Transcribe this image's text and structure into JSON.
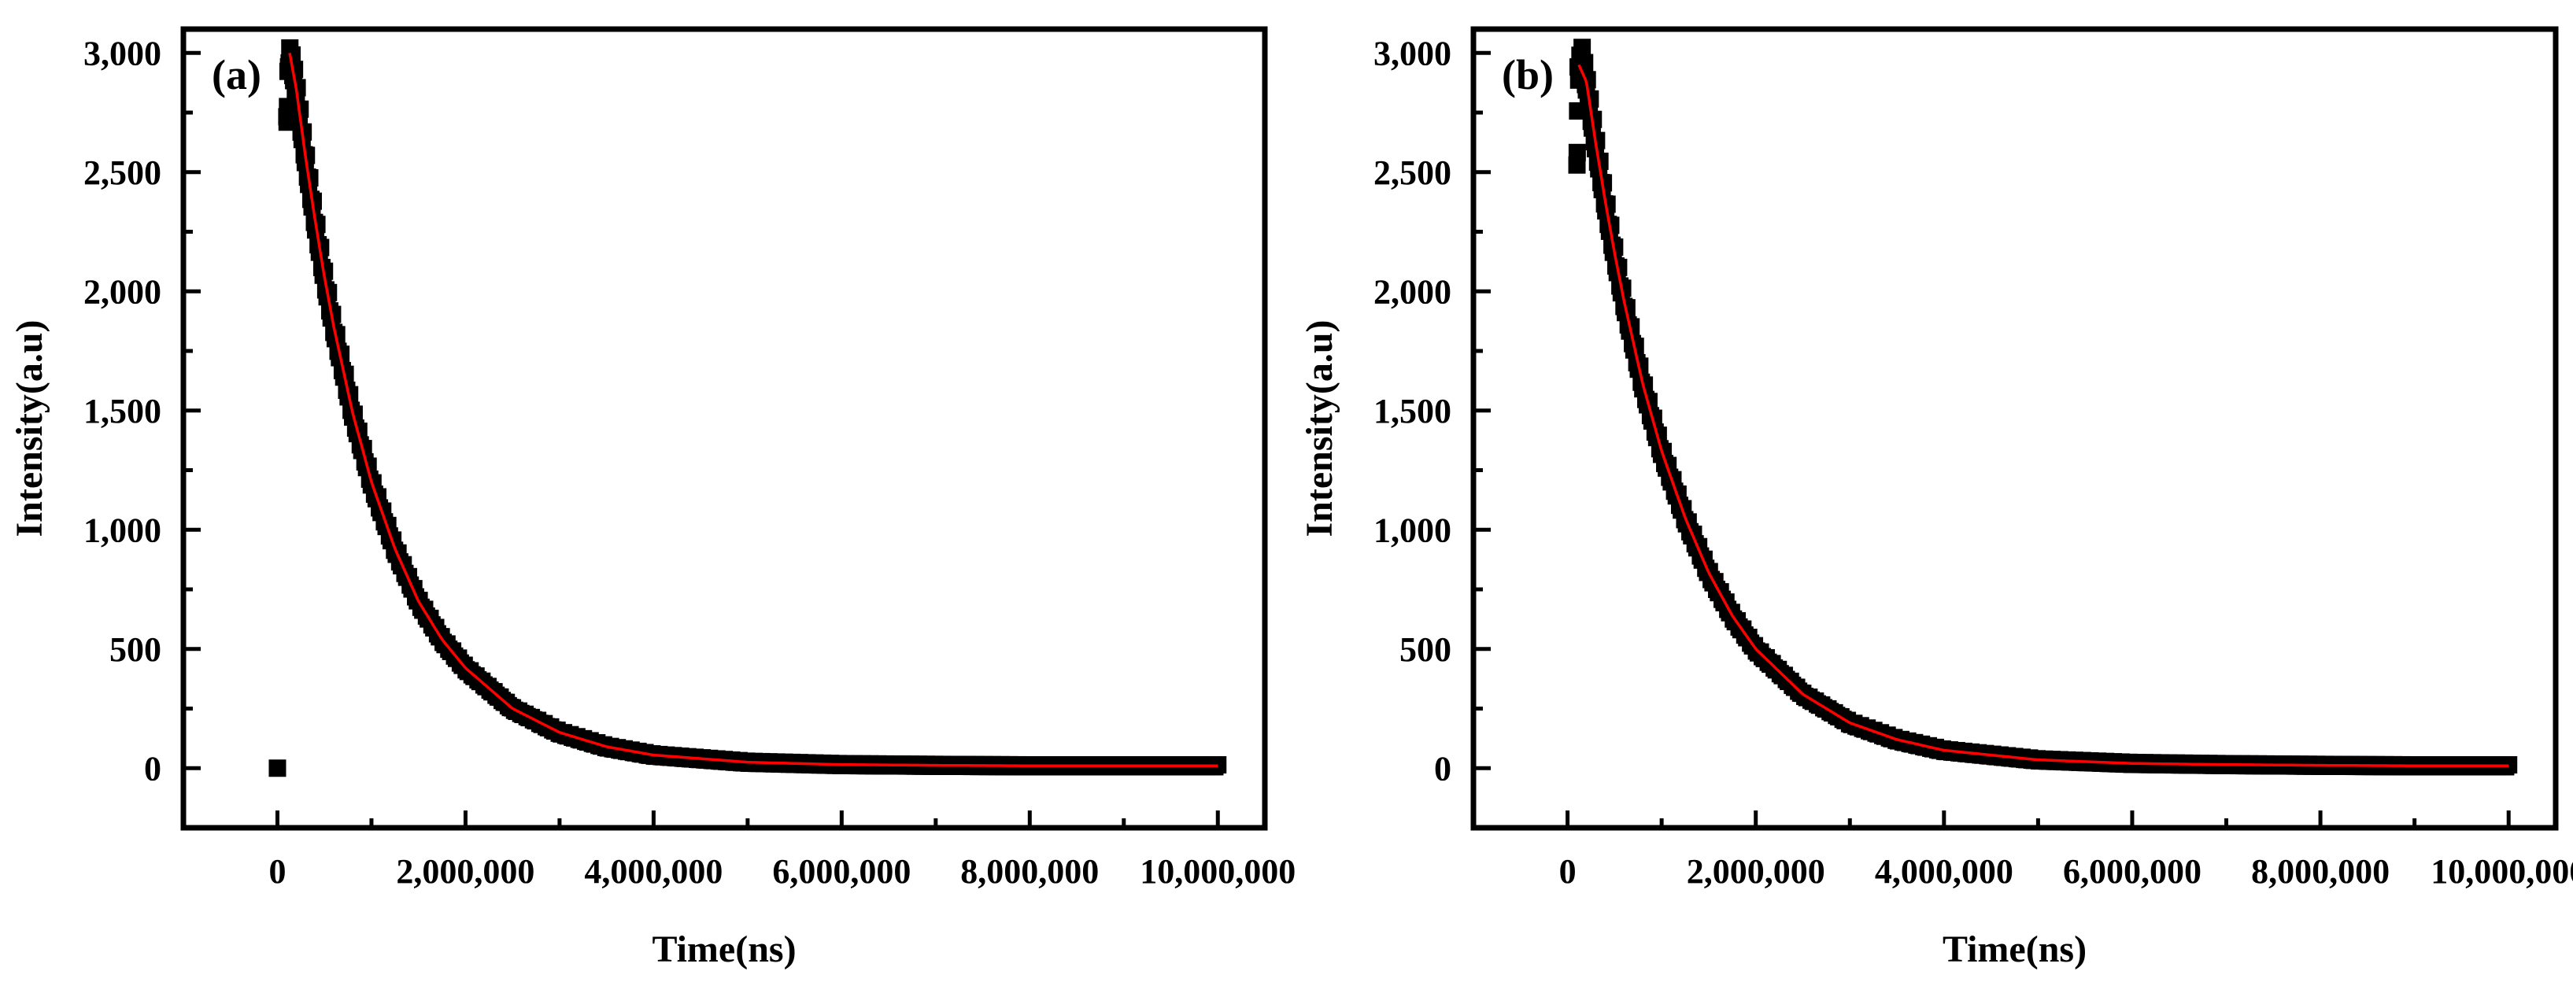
{
  "chart_data": [
    {
      "type": "scatter",
      "panel_label": "(a)",
      "xlabel": "Time(ns)",
      "ylabel": "Intensity(a.u)",
      "xlim": [
        -1000000,
        10500000
      ],
      "ylim": [
        -250,
        3100
      ],
      "xticks": [
        0,
        2000000,
        4000000,
        6000000,
        8000000,
        10000000
      ],
      "xtick_labels": [
        "0",
        "2,000,000",
        "4,000,000",
        "6,000,000",
        "8,000,000",
        "10,000,000"
      ],
      "yticks": [
        0,
        500,
        1000,
        1500,
        2000,
        2500,
        3000
      ],
      "ytick_labels": [
        "0",
        "500",
        "1,000",
        "1,500",
        "2,000",
        "2,500",
        "3,000"
      ],
      "grid": false,
      "marker_color": "#000000",
      "fit_color": "#ff0000",
      "series": [
        {
          "marker": "square",
          "x": [
            0,
            100000,
            120000,
            160000,
            200000,
            300000,
            400000,
            500000,
            600000,
            800000,
            1000000,
            1250000,
            1500000,
            1750000,
            2000000,
            2500000,
            3000000,
            3500000,
            4000000,
            5000000,
            6000000,
            7000000,
            8000000,
            9000000,
            10000000
          ],
          "y": [
            0,
            2700,
            3000,
            2950,
            2850,
            2560,
            2300,
            2060,
            1850,
            1490,
            1200,
            920,
            700,
            540,
            420,
            250,
            150,
            90,
            55,
            25,
            15,
            12,
            10,
            10,
            10
          ]
        },
        {
          "line": true,
          "x": [
            130000,
            200000,
            300000,
            400000,
            500000,
            600000,
            800000,
            1000000,
            1250000,
            1500000,
            1750000,
            2000000,
            2500000,
            3000000,
            3500000,
            4000000,
            5000000,
            6000000,
            7000000,
            8000000,
            9000000,
            10000000
          ],
          "y": [
            3000,
            2850,
            2560,
            2300,
            2060,
            1850,
            1490,
            1200,
            920,
            700,
            540,
            420,
            250,
            150,
            90,
            55,
            25,
            15,
            12,
            10,
            10,
            10
          ]
        }
      ]
    },
    {
      "type": "scatter",
      "panel_label": "(b)",
      "xlabel": "Time(ns)",
      "ylabel": "Intensity(a.u)",
      "xlim": [
        -1000000,
        10500000
      ],
      "ylim": [
        -250,
        3100
      ],
      "xticks": [
        0,
        2000000,
        4000000,
        6000000,
        8000000,
        10000000
      ],
      "xtick_labels": [
        "0",
        "2,000,000",
        "4,000,000",
        "6,000,000",
        "8,000,000",
        "10,000,000"
      ],
      "yticks": [
        0,
        500,
        1000,
        1500,
        2000,
        2500,
        3000
      ],
      "ytick_labels": [
        "0",
        "500",
        "1,000",
        "1,500",
        "2,000",
        "2,500",
        "3,000"
      ],
      "grid": false,
      "marker_color": "#000000",
      "fit_color": "#ff0000",
      "series": [
        {
          "marker": "square",
          "x": [
            100000,
            110000,
            150000,
            200000,
            300000,
            400000,
            500000,
            600000,
            800000,
            1000000,
            1250000,
            1500000,
            1750000,
            2000000,
            2500000,
            3000000,
            3500000,
            4000000,
            5000000,
            6000000,
            7000000,
            8000000,
            9000000,
            10000000
          ],
          "y": [
            2500,
            2900,
            3000,
            2880,
            2620,
            2380,
            2160,
            1960,
            1610,
            1330,
            1050,
            820,
            640,
            500,
            310,
            190,
            120,
            75,
            35,
            20,
            15,
            12,
            10,
            10
          ]
        },
        {
          "line": true,
          "x": [
            120000,
            200000,
            300000,
            400000,
            500000,
            600000,
            800000,
            1000000,
            1250000,
            1500000,
            1750000,
            2000000,
            2500000,
            3000000,
            3500000,
            4000000,
            5000000,
            6000000,
            7000000,
            8000000,
            9000000,
            10000000
          ],
          "y": [
            2950,
            2880,
            2620,
            2380,
            2160,
            1960,
            1610,
            1330,
            1050,
            820,
            640,
            500,
            310,
            190,
            120,
            75,
            35,
            20,
            15,
            12,
            10,
            10
          ]
        }
      ]
    }
  ]
}
